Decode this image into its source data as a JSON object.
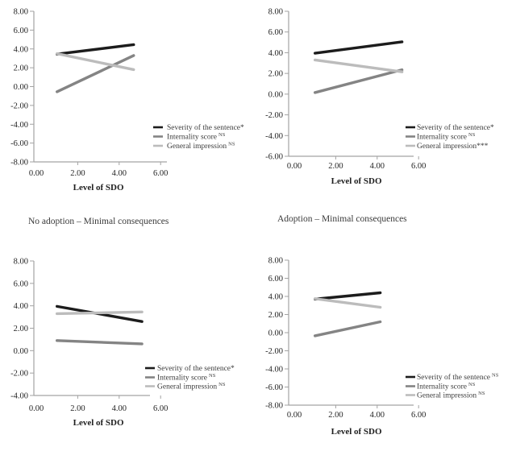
{
  "colors": {
    "severity": "#1c1c1c",
    "internality": "#848484",
    "general": "#bcbcbc",
    "axis": "#a3a3a3",
    "tick_text": "#252525",
    "legend_text": "#3d3d3d"
  },
  "captions": {
    "left": "No adoption – Minimal consequences",
    "right": "Adoption – Minimal consequences"
  },
  "chart_data": [
    {
      "name": "top-left",
      "type": "line",
      "title": "",
      "xlabel": "Level of SDO",
      "xticks": [
        "0.00",
        "2.00",
        "4.00",
        "6.00"
      ],
      "yticks": [
        "8.00",
        "6.00",
        "4.00",
        "2.00",
        "0.00",
        "-2.00",
        "-4.00",
        "-6.00",
        "-8.00"
      ],
      "ylim": [
        -8,
        8
      ],
      "xlim": [
        0,
        6
      ],
      "grid": false,
      "legend_position": "lower right",
      "series": [
        {
          "name": "Severity of the sentence",
          "sig": "*",
          "x": [
            1.0,
            4.7
          ],
          "y": [
            3.45,
            4.45
          ],
          "color": "#1c1c1c"
        },
        {
          "name": "Internality score",
          "sig": "NS",
          "x": [
            1.0,
            4.7
          ],
          "y": [
            -0.55,
            3.3
          ],
          "color": "#848484"
        },
        {
          "name": "General impression",
          "sig": "NS",
          "x": [
            1.0,
            4.7
          ],
          "y": [
            3.5,
            1.8
          ],
          "color": "#bcbcbc"
        }
      ]
    },
    {
      "name": "top-right",
      "type": "line",
      "title": "",
      "xlabel": "Level of SDO",
      "xticks": [
        "0.00",
        "2.00",
        "4.00",
        "6.00"
      ],
      "yticks": [
        "8.00",
        "6.00",
        "4.00",
        "2.00",
        "0.00",
        "-2.00",
        "-4.00",
        "-6.00"
      ],
      "ylim": [
        -6,
        8
      ],
      "xlim": [
        0,
        6
      ],
      "grid": false,
      "legend_position": "lower right",
      "series": [
        {
          "name": "Severity of the sentence",
          "sig": "*",
          "x": [
            1.0,
            5.2
          ],
          "y": [
            3.95,
            5.05
          ],
          "color": "#1c1c1c"
        },
        {
          "name": "Internality score",
          "sig": "NS",
          "x": [
            1.0,
            5.2
          ],
          "y": [
            0.15,
            2.35
          ],
          "color": "#848484"
        },
        {
          "name": "General impression",
          "sig": "***",
          "x": [
            1.0,
            5.2
          ],
          "y": [
            3.3,
            2.15
          ],
          "color": "#bcbcbc"
        }
      ]
    },
    {
      "name": "bottom-left",
      "type": "line",
      "title": "No adoption – Minimal consequences",
      "xlabel": "Level of SDO",
      "xticks": [
        "0.00",
        "2.00",
        "4.00",
        "6.00"
      ],
      "yticks": [
        "8.00",
        "6.00",
        "4.00",
        "2.00",
        "0.00",
        "-2.00",
        "-4.00"
      ],
      "ylim": [
        -4,
        8
      ],
      "xlim": [
        0,
        6
      ],
      "grid": false,
      "legend_position": "lower right",
      "series": [
        {
          "name": "Severity of the sentence",
          "sig": "*",
          "x": [
            1.0,
            5.1
          ],
          "y": [
            3.95,
            2.6
          ],
          "color": "#1c1c1c"
        },
        {
          "name": "Internality score",
          "sig": "NS",
          "x": [
            1.0,
            5.1
          ],
          "y": [
            0.9,
            0.6
          ],
          "color": "#848484"
        },
        {
          "name": "General impression",
          "sig": "NS",
          "x": [
            1.0,
            5.1
          ],
          "y": [
            3.3,
            3.45
          ],
          "color": "#bcbcbc"
        }
      ]
    },
    {
      "name": "bottom-right",
      "type": "line",
      "title": "Adoption – Minimal consequences",
      "xlabel": "Level of SDO",
      "xticks": [
        "0.00",
        "2.00",
        "4.00",
        "6.00"
      ],
      "yticks": [
        "8.00",
        "6.00",
        "4.00",
        "2.00",
        "0.00",
        "-2.00",
        "-4.00",
        "-6.00",
        "-8.00"
      ],
      "ylim": [
        -8,
        8
      ],
      "xlim": [
        0,
        6
      ],
      "grid": false,
      "legend_position": "lower right",
      "series": [
        {
          "name": "Severity of the sentence",
          "sig": "NS",
          "x": [
            1.0,
            4.15
          ],
          "y": [
            3.7,
            4.4
          ],
          "color": "#1c1c1c"
        },
        {
          "name": "Internality score",
          "sig": "NS",
          "x": [
            1.0,
            4.15
          ],
          "y": [
            -0.35,
            1.2
          ],
          "color": "#848484"
        },
        {
          "name": "General impression",
          "sig": "NS",
          "x": [
            1.0,
            4.15
          ],
          "y": [
            3.75,
            2.8
          ],
          "color": "#bcbcbc"
        }
      ]
    }
  ]
}
